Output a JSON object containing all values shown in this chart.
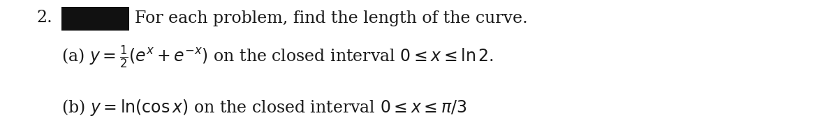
{
  "background_color": "#ffffff",
  "fig_width": 12.0,
  "fig_height": 1.93,
  "dpi": 100,
  "text_color": "#1a1a1a",
  "rect_color": "#111111",
  "number_text": "2.",
  "number_fontsize": 17,
  "header_text": "For each problem, find the length of the curve.",
  "header_fontsize": 17,
  "math_fontsize": 17,
  "line_a": "(a) $y = \\frac{1}{2}(e^{x} + e^{-x})$ on the closed interval $0 \\leq x \\leq \\ln 2$.",
  "line_b": "(b) $y = \\ln(\\cos x)$ on the closed interval $0 \\leq x \\leq \\pi/3$"
}
